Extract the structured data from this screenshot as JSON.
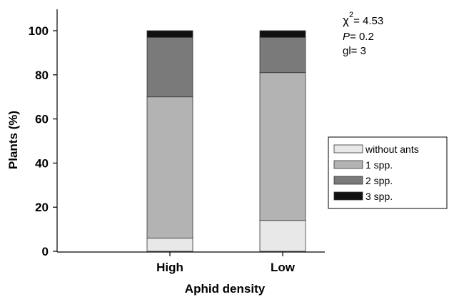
{
  "chart_data": {
    "type": "bar",
    "stacked": true,
    "categories": [
      "High",
      "Low"
    ],
    "series": [
      {
        "name": "without ants",
        "values": [
          6,
          14
        ],
        "color": "#e8e8e8"
      },
      {
        "name": "1 spp.",
        "values": [
          64,
          67
        ],
        "color": "#b3b3b3"
      },
      {
        "name": "2 spp.",
        "values": [
          27,
          16
        ],
        "color": "#7a7a7a"
      },
      {
        "name": "3 spp.",
        "values": [
          3,
          3
        ],
        "color": "#111111"
      }
    ],
    "xlabel": "Aphid density",
    "ylabel": "Plants (%)",
    "ylim": [
      0,
      100
    ],
    "yticks": [
      "0",
      "20",
      "40",
      "60",
      "80",
      "100"
    ],
    "grid": false,
    "legend_position": "right",
    "annotations": {
      "chi_symbol": "χ",
      "chi_superscript": "2",
      "chi_value": "= 4.53",
      "p_symbol": "P",
      "p_value": "= 0.2",
      "gl_text": "gl= 3"
    }
  }
}
